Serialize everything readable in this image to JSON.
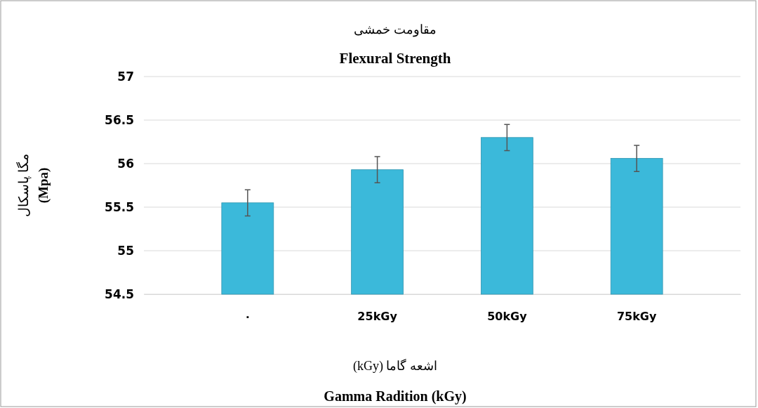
{
  "chart_data": {
    "type": "bar",
    "title": "مقاومت خمشی",
    "subtitle": "Flexural Strength",
    "xlabel": "اشعه گاما (kGy)\nGamma Radition (kGy)",
    "ylabel": "مگا پاسکال\n(Mpa)",
    "categories": [
      "٠",
      "25kGy",
      "50kGy",
      "75kGy"
    ],
    "values": [
      55.55,
      55.93,
      56.3,
      56.06
    ],
    "errors": [
      0.15,
      0.15,
      0.15,
      0.15
    ],
    "color": "#3bb9da",
    "ylim": [
      54.5,
      57
    ],
    "yticks": [
      {
        "value": 54.5,
        "label": "54.5"
      },
      {
        "value": 55,
        "label": "55"
      },
      {
        "value": 55.5,
        "label": "55.5"
      },
      {
        "value": 56,
        "label": "56"
      },
      {
        "value": 56.5,
        "label": "56.5"
      },
      {
        "value": 57,
        "label": "57"
      }
    ],
    "grid": "y"
  }
}
